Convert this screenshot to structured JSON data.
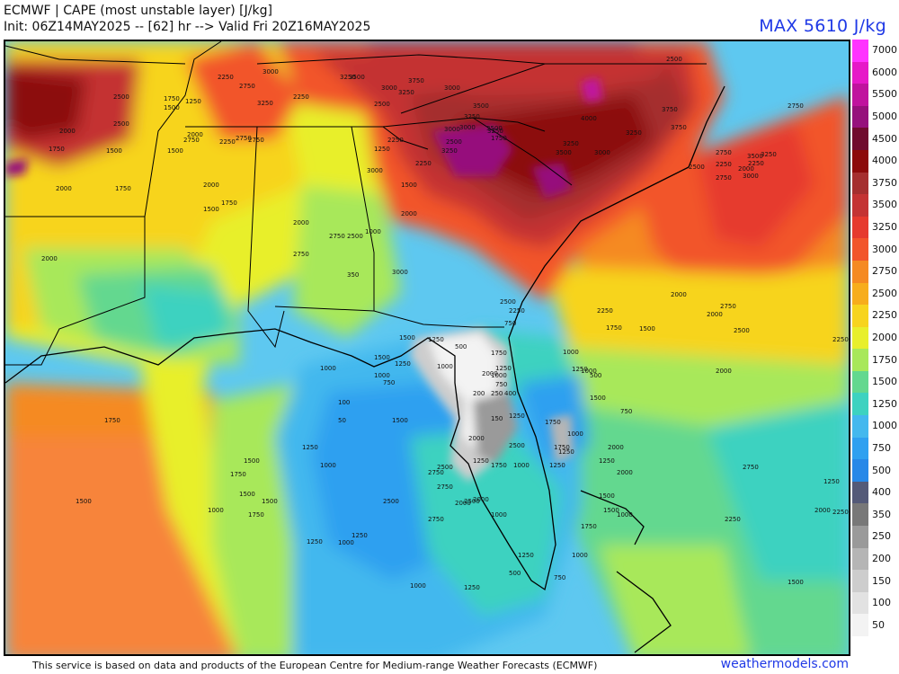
{
  "header": {
    "line1": "ECMWF | CAPE (most unstable layer) [J/kg]",
    "line2": "Init: 06Z14MAY2025 -- [62] hr --> Valid Fri 20Z16MAY2025",
    "max_label": "MAX 5610 J/kg"
  },
  "footer": {
    "credit": "This service is based on data and products of the European Centre for Medium-range Weather Forecasts (ECMWF)",
    "brand": "weathermodels.com"
  },
  "colorbar": [
    {
      "label": "7000",
      "color": "#ff33ff"
    },
    {
      "label": "6000",
      "color": "#e619c8"
    },
    {
      "label": "5500",
      "color": "#c0139e"
    },
    {
      "label": "5000",
      "color": "#96117c"
    },
    {
      "label": "4500",
      "color": "#700b2e"
    },
    {
      "label": "4000",
      "color": "#8c0a0a"
    },
    {
      "label": "3750",
      "color": "#a52f2f"
    },
    {
      "label": "3500",
      "color": "#c43333"
    },
    {
      "label": "3250",
      "color": "#e63a2e"
    },
    {
      "label": "3000",
      "color": "#f2552b"
    },
    {
      "label": "2750",
      "color": "#f58a22"
    },
    {
      "label": "2500",
      "color": "#f7ad1c"
    },
    {
      "label": "2250",
      "color": "#f7d41e"
    },
    {
      "label": "2000",
      "color": "#e8ef2c"
    },
    {
      "label": "1750",
      "color": "#a8e85a"
    },
    {
      "label": "1500",
      "color": "#63d88f"
    },
    {
      "label": "1250",
      "color": "#3dd2c0"
    },
    {
      "label": "1000",
      "color": "#43b8ee"
    },
    {
      "label": "750",
      "color": "#2fa0f0"
    },
    {
      "label": "500",
      "color": "#2788e8"
    },
    {
      "label": "400",
      "color": "#545a78"
    },
    {
      "label": "350",
      "color": "#787878"
    },
    {
      "label": "250",
      "color": "#9a9a9a"
    },
    {
      "label": "200",
      "color": "#b5b5b5"
    },
    {
      "label": "150",
      "color": "#cdcdcd"
    },
    {
      "label": "100",
      "color": "#e2e2e2"
    },
    {
      "label": "50",
      "color": "#f3f3f3"
    }
  ],
  "contour_labels": [
    "2500",
    "2250",
    "3000",
    "3250",
    "3750",
    "3500",
    "3250",
    "3000",
    "2500",
    "2750",
    "3250",
    "2250",
    "1250",
    "1750",
    "1500",
    "3000",
    "3500",
    "3250",
    "2500",
    "3250",
    "3000",
    "3500",
    "3000",
    "3750",
    "4000",
    "3750",
    "3250",
    "2750",
    "3250",
    "3500",
    "3000",
    "3500",
    "2750",
    "2250",
    "2500",
    "2000",
    "3000",
    "3250",
    "2750",
    "2250",
    "2000",
    "1750",
    "1500",
    "2250",
    "2750",
    "2000",
    "2750",
    "3000",
    "2250",
    "2500",
    "3250",
    "2250",
    "1250",
    "1750",
    "2500",
    "2750",
    "2000",
    "1750",
    "2000",
    "1500",
    "1500",
    "1750",
    "2000",
    "1500",
    "1000",
    "2000",
    "2750",
    "2500",
    "2000",
    "2750",
    "3000",
    "2500",
    "2750",
    "2250",
    "2000",
    "2250",
    "1750",
    "1500",
    "2000",
    "2500",
    "2000",
    "1750",
    "1250",
    "1000",
    "750",
    "1000",
    "1250",
    "350",
    "500",
    "1500",
    "1500",
    "1000",
    "750",
    "1000",
    "1250",
    "2000",
    "1250",
    "1000",
    "750",
    "400",
    "250",
    "200",
    "150",
    "100",
    "50",
    "1250",
    "1750",
    "1500",
    "500",
    "1000",
    "1250",
    "750",
    "1000",
    "1250",
    "1500",
    "1000",
    "2000",
    "2000",
    "1750",
    "2250",
    "2750",
    "2000",
    "2750",
    "2500",
    "2500",
    "2000",
    "1750",
    "1250",
    "1250",
    "1000",
    "1500",
    "1000",
    "1250",
    "1500",
    "1750",
    "1500",
    "1250",
    "1750",
    "2500",
    "2750",
    "2000",
    "2500",
    "1500",
    "1250",
    "1000",
    "1500",
    "1750",
    "2000",
    "2250",
    "2750",
    "2250",
    "1500",
    "1000",
    "500",
    "750",
    "1250",
    "1750",
    "1500",
    "1000",
    "1250",
    "1000",
    "1000",
    "1250"
  ]
}
